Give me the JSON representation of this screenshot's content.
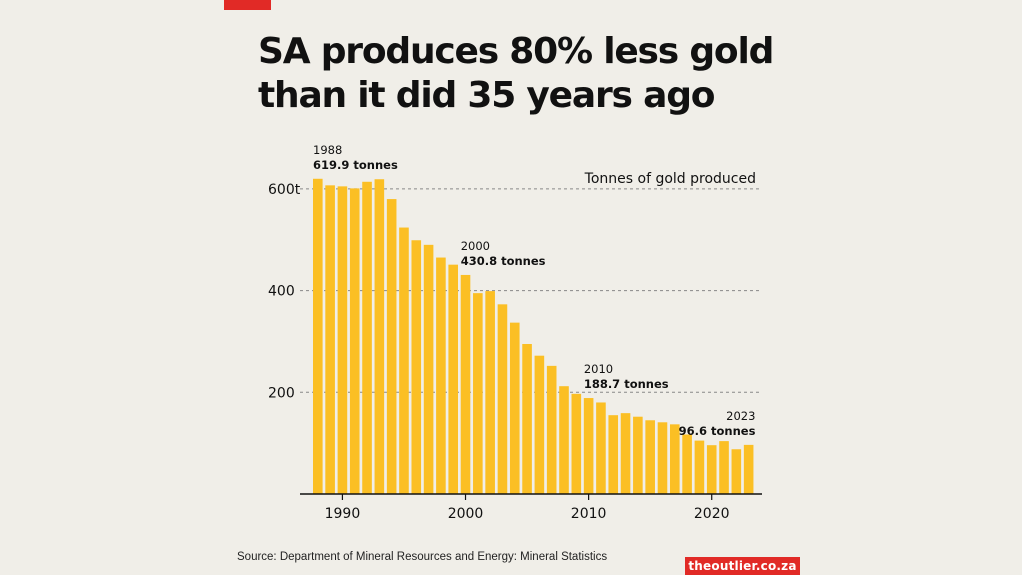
{
  "headline": {
    "line1": "SA produces 80% less gold",
    "line2": "than it did 35 years ago"
  },
  "source": "Source: Department of Mineral Resources and Energy: Mineral Statistics",
  "brand": "theoutlier.co.za",
  "colors": {
    "bar": "#fbbf24",
    "accent": "#e12a26",
    "grid": "#888888",
    "axis": "#111111",
    "background": "#f0eee8"
  },
  "chart_data": {
    "type": "bar",
    "title": "Tonnes of gold produced",
    "xlabel": "",
    "ylabel": "",
    "ylim": [
      0,
      620
    ],
    "yticks": [
      {
        "value": 200,
        "label": "200"
      },
      {
        "value": 400,
        "label": "400"
      },
      {
        "value": 600,
        "label": "600t"
      }
    ],
    "xticks": [
      {
        "value": 1990,
        "label": "1990"
      },
      {
        "value": 2000,
        "label": "2000"
      },
      {
        "value": 2010,
        "label": "2010"
      },
      {
        "value": 2020,
        "label": "2020"
      }
    ],
    "grid": "horizontal dashed",
    "x": [
      1988,
      1989,
      1990,
      1991,
      1992,
      1993,
      1994,
      1995,
      1996,
      1997,
      1998,
      1999,
      2000,
      2001,
      2002,
      2003,
      2004,
      2005,
      2006,
      2007,
      2008,
      2009,
      2010,
      2011,
      2012,
      2013,
      2014,
      2015,
      2016,
      2017,
      2018,
      2019,
      2020,
      2021,
      2022,
      2023
    ],
    "values": [
      619.9,
      607,
      605,
      601,
      614,
      619,
      580,
      524,
      499,
      490,
      465,
      451,
      430.8,
      395,
      399,
      373,
      337,
      295,
      272,
      252,
      212,
      197,
      188.7,
      180,
      155,
      159,
      152,
      145,
      141,
      137,
      117,
      105,
      96,
      104,
      88,
      96.6
    ],
    "annotations": [
      {
        "x": 1988,
        "year": "1988",
        "text": "619.9 tonnes"
      },
      {
        "x": 2000,
        "year": "2000",
        "text": "430.8 tonnes"
      },
      {
        "x": 2010,
        "year": "2010",
        "text": "188.7 tonnes"
      },
      {
        "x": 2023,
        "year": "2023",
        "text": "96.6 tonnes"
      }
    ]
  }
}
